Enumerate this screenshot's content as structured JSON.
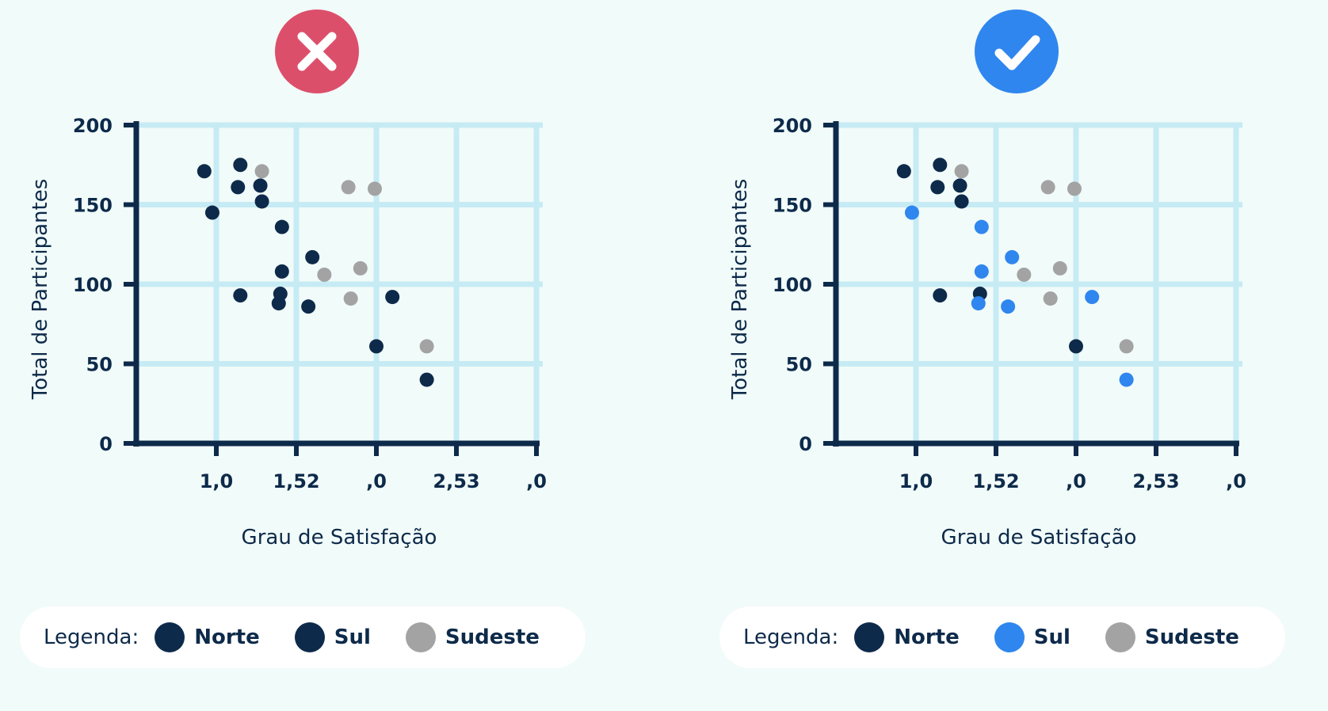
{
  "colors": {
    "background": "#f1fbf9",
    "grid": "#c6ebf4",
    "axis": "#0d2a4a",
    "norte": "#0d2a4a",
    "sul_dark": "#0d2a4a",
    "sul_blue": "#2f86ee",
    "sudeste": "#a3a3a3",
    "bad_badge": "#dc4f6b",
    "good_badge": "#2f86ee"
  },
  "chart_data": [
    {
      "type": "scatter",
      "badge_icon": "x-mark-icon",
      "xlabel": "Grau de Satisfação",
      "ylabel": "Total de Participantes",
      "x_ticks": [
        "1,0",
        "1,52",
        ",0",
        "2,53",
        ",0"
      ],
      "y_ticks": [
        "0",
        "50",
        "100",
        "150",
        "200"
      ],
      "xlim": [
        0,
        5
      ],
      "ylim": [
        0,
        200
      ],
      "grid": true,
      "legend_title": "Legenda:",
      "legend": [
        {
          "name": "Norte",
          "color": "#0d2a4a"
        },
        {
          "name": "Sul",
          "color": "#0d2a4a"
        },
        {
          "name": "Sudeste",
          "color": "#a3a3a3"
        }
      ],
      "series": [
        {
          "name": "Norte",
          "color": "#0d2a4a",
          "points": [
            [
              0.85,
              171
            ],
            [
              1.3,
              175
            ],
            [
              1.27,
              161
            ],
            [
              1.55,
              162
            ],
            [
              1.57,
              152
            ],
            [
              1.82,
              136
            ],
            [
              1.8,
              94
            ],
            [
              1.3,
              93
            ],
            [
              3.0,
              61
            ],
            [
              3.63,
              40
            ]
          ]
        },
        {
          "name": "Sul",
          "color": "#0d2a4a",
          "points": [
            [
              0.95,
              145
            ],
            [
              2.2,
              117
            ],
            [
              1.82,
              108
            ],
            [
              1.78,
              88
            ],
            [
              2.15,
              86
            ],
            [
              3.2,
              92
            ]
          ]
        },
        {
          "name": "Sudeste",
          "color": "#a3a3a3",
          "points": [
            [
              1.57,
              171
            ],
            [
              2.35,
              106
            ],
            [
              2.65,
              161
            ],
            [
              2.98,
              160
            ],
            [
              2.8,
              110
            ],
            [
              2.68,
              91
            ],
            [
              3.63,
              61
            ]
          ]
        }
      ]
    },
    {
      "type": "scatter",
      "badge_icon": "checkmark-icon",
      "xlabel": "Grau de Satisfação",
      "ylabel": "Total de Participantes",
      "x_ticks": [
        "1,0",
        "1,52",
        ",0",
        "2,53",
        ",0"
      ],
      "y_ticks": [
        "0",
        "50",
        "100",
        "150",
        "200"
      ],
      "xlim": [
        0,
        5
      ],
      "ylim": [
        0,
        200
      ],
      "grid": true,
      "legend_title": "Legenda:",
      "legend": [
        {
          "name": "Norte",
          "color": "#0d2a4a"
        },
        {
          "name": "Sul",
          "color": "#2f86ee"
        },
        {
          "name": "Sudeste",
          "color": "#a3a3a3"
        }
      ],
      "series": [
        {
          "name": "Norte",
          "color": "#0d2a4a",
          "points": [
            [
              0.85,
              171
            ],
            [
              1.3,
              175
            ],
            [
              1.27,
              161
            ],
            [
              1.55,
              162
            ],
            [
              1.57,
              152
            ],
            [
              1.8,
              94
            ],
            [
              1.3,
              93
            ],
            [
              3.0,
              61
            ]
          ]
        },
        {
          "name": "Sul",
          "color": "#2f86ee",
          "points": [
            [
              0.95,
              145
            ],
            [
              1.82,
              136
            ],
            [
              2.2,
              117
            ],
            [
              1.82,
              108
            ],
            [
              1.78,
              88
            ],
            [
              2.15,
              86
            ],
            [
              3.2,
              92
            ],
            [
              3.63,
              40
            ]
          ]
        },
        {
          "name": "Sudeste",
          "color": "#a3a3a3",
          "points": [
            [
              1.57,
              171
            ],
            [
              2.35,
              106
            ],
            [
              2.65,
              161
            ],
            [
              2.98,
              160
            ],
            [
              2.8,
              110
            ],
            [
              2.68,
              91
            ],
            [
              3.63,
              61
            ]
          ]
        }
      ]
    }
  ]
}
